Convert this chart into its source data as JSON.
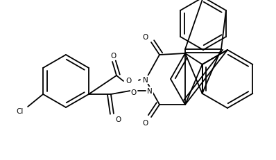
{
  "bg": "#ffffff",
  "lc": "#000000",
  "lw": 1.3,
  "fs": 7.5,
  "figsize": [
    3.98,
    2.32
  ],
  "dpi": 100,
  "xlim": [
    0,
    398
  ],
  "ylim": [
    0,
    232
  ]
}
